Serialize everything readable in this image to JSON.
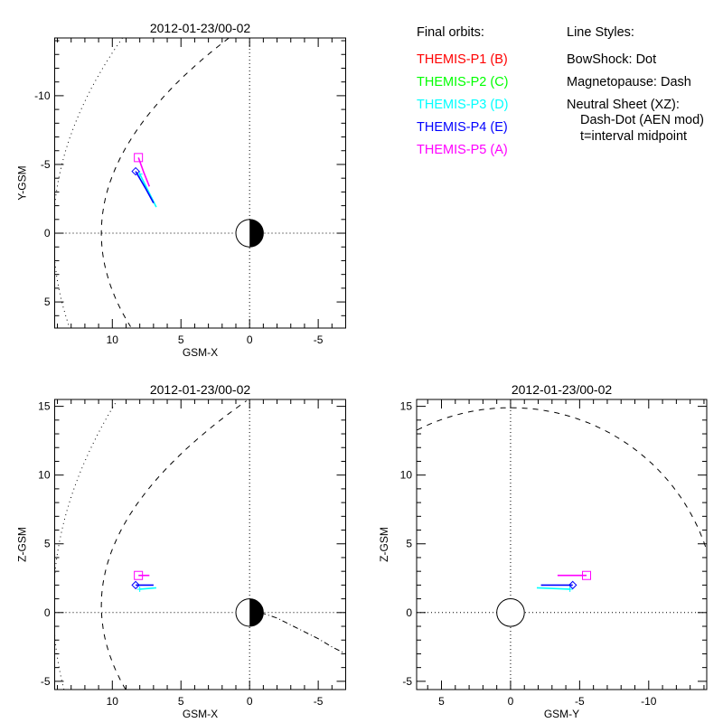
{
  "legend": {
    "orbits_title": "Final orbits:",
    "probes": [
      {
        "label": "THEMIS-P1 (B)",
        "color": "#ff0000"
      },
      {
        "label": "THEMIS-P2 (C)",
        "color": "#00ff00"
      },
      {
        "label": "THEMIS-P3 (D)",
        "color": "#00ffff"
      },
      {
        "label": "THEMIS-P4 (E)",
        "color": "#0000ff"
      },
      {
        "label": "THEMIS-P5 (A)",
        "color": "#ff00ff"
      }
    ],
    "styles_title": "Line Styles:",
    "styles": [
      "BowShock: Dot",
      "Magnetopause: Dash",
      "Neutral Sheet (XZ):",
      "Dash-Dot (AEN mod)",
      "t=interval midpoint"
    ]
  },
  "chart_data": [
    {
      "type": "line",
      "title": "2012-01-23/00-02",
      "xlabel": "GSM-X",
      "ylabel": "Y-GSM",
      "xlim": [
        14.2,
        -7.0
      ],
      "ylim": [
        6.9,
        -14.2
      ],
      "xticks": [
        10,
        5,
        0,
        -5
      ],
      "yticks": [
        -10,
        -5,
        0,
        5
      ],
      "earth": "half-filled",
      "bowshock": {
        "x0": 14.3,
        "k": 40,
        "c": 0
      },
      "magnetopause": {
        "x0": 10.8,
        "k": 21.7,
        "c": 0
      },
      "series": [
        {
          "name": "THEMIS-P3",
          "color": "#00ffff",
          "symbol": "plus",
          "x": [
            8.0,
            7.4,
            6.8
          ],
          "y": [
            -4.3,
            -3.1,
            -1.9
          ]
        },
        {
          "name": "THEMIS-P4",
          "color": "#0000ff",
          "symbol": "diamond",
          "x": [
            8.3,
            7.6,
            7.0
          ],
          "y": [
            -4.5,
            -3.3,
            -2.2
          ]
        },
        {
          "name": "THEMIS-P5",
          "color": "#ff00ff",
          "symbol": "square",
          "x": [
            8.1,
            7.7,
            7.3
          ],
          "y": [
            -5.5,
            -4.4,
            -3.4
          ]
        }
      ]
    },
    {
      "type": "line",
      "title": "2012-01-23/00-02",
      "xlabel": "GSM-X",
      "ylabel": "Z-GSM",
      "xlim": [
        14.2,
        -7.0
      ],
      "ylim": [
        -5.6,
        15.5
      ],
      "xticks": [
        10,
        5,
        0,
        -5
      ],
      "yticks": [
        15,
        10,
        5,
        0,
        -5
      ],
      "earth": "half-filled",
      "bowshock": {
        "x0": 14.3,
        "k": 48,
        "c": 0.5
      },
      "magnetopause": {
        "x0": 10.8,
        "k": 21,
        "c": 0.5
      },
      "neutral_sheet": {
        "x": [
          -0.8,
          -2,
          -3,
          -4,
          -5,
          -6,
          -7
        ],
        "y": [
          0,
          -0.4,
          -0.9,
          -1.4,
          -1.9,
          -2.5,
          -3.0
        ]
      },
      "series": [
        {
          "name": "THEMIS-P3",
          "color": "#00ffff",
          "symbol": "plus",
          "x": [
            8.0,
            6.8
          ],
          "y": [
            1.7,
            1.8
          ]
        },
        {
          "name": "THEMIS-P4",
          "color": "#0000ff",
          "symbol": "diamond",
          "x": [
            8.3,
            7.0
          ],
          "y": [
            2.0,
            2.0
          ]
        },
        {
          "name": "THEMIS-P5",
          "color": "#ff00ff",
          "symbol": "square",
          "x": [
            8.1,
            7.3
          ],
          "y": [
            2.7,
            2.7
          ]
        }
      ]
    },
    {
      "type": "line",
      "title": "2012-01-23/00-02",
      "xlabel": "GSM-Y",
      "ylabel": "Z-GSM",
      "xlim": [
        6.8,
        -14.2
      ],
      "ylim": [
        -5.6,
        15.5
      ],
      "xticks": [
        5,
        0,
        -5,
        -10
      ],
      "yticks": [
        15,
        10,
        5,
        0,
        -5
      ],
      "earth": "open",
      "magnetopause_radius": 14.9,
      "series": [
        {
          "name": "THEMIS-P3",
          "color": "#00ffff",
          "symbol": "plus",
          "x": [
            -4.3,
            -1.9
          ],
          "y": [
            1.7,
            1.8
          ]
        },
        {
          "name": "THEMIS-P4",
          "color": "#0000ff",
          "symbol": "diamond",
          "x": [
            -4.5,
            -2.2
          ],
          "y": [
            2.0,
            2.0
          ]
        },
        {
          "name": "THEMIS-P5",
          "color": "#ff00ff",
          "symbol": "square",
          "x": [
            -5.5,
            -3.4
          ],
          "y": [
            2.7,
            2.7
          ]
        }
      ]
    }
  ]
}
